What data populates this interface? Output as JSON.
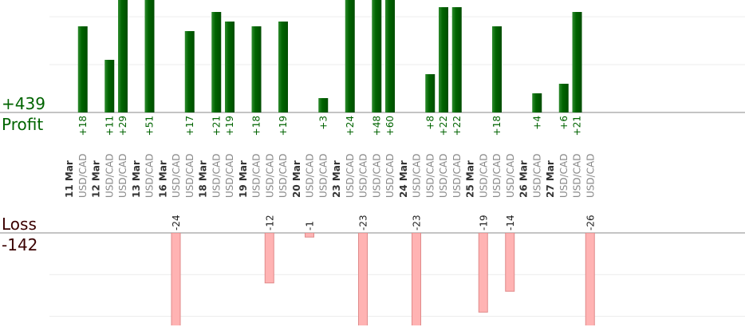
{
  "chart_data": {
    "type": "bar",
    "profit_label": "Profit",
    "profit_total": {
      "value": 439,
      "label": "+439"
    },
    "loss_label": "Loss",
    "loss_total": -142,
    "profit_ylim": [
      0,
      23.5
    ],
    "profit_grid": [
      10,
      20
    ],
    "loss_ylim": [
      -22,
      0
    ],
    "loss_grid": [
      -10,
      -20
    ],
    "profit_color": "#006400",
    "loss_color": "#ffb3b3",
    "groups": [
      {
        "date": "11 Mar",
        "trades": [
          {
            "pair": "USD/CAD",
            "value": 18,
            "value_label": "+18"
          }
        ]
      },
      {
        "date": "12 Mar",
        "trades": [
          {
            "pair": "USD/CAD",
            "value": 11,
            "value_label": "+11"
          },
          {
            "pair": "USD/CAD",
            "value": 29,
            "value_label": "+29"
          }
        ]
      },
      {
        "date": "13 Mar",
        "trades": [
          {
            "pair": "USD/CAD",
            "value": 51,
            "value_label": "+51"
          }
        ]
      },
      {
        "date": "16 Mar",
        "trades": [
          {
            "pair": "USD/CAD",
            "value": -24
          },
          {
            "pair": "USD/CAD",
            "value": 17,
            "value_label": "+17"
          }
        ]
      },
      {
        "date": "18 Mar",
        "trades": [
          {
            "pair": "USD/CAD",
            "value": 21,
            "value_label": "+21"
          },
          {
            "pair": "USD/CAD",
            "value": 19,
            "value_label": "+19"
          }
        ]
      },
      {
        "date": "19 Mar",
        "trades": [
          {
            "pair": "USD/CAD",
            "value": 18,
            "value_label": "+18"
          },
          {
            "pair": "USD/CAD",
            "value": -12
          },
          {
            "pair": "USD/CAD",
            "value": 19,
            "value_label": "+19"
          }
        ]
      },
      {
        "date": "20 Mar",
        "trades": [
          {
            "pair": "USD/CAD",
            "value": -1
          },
          {
            "pair": "USD/CAD",
            "value": 3,
            "value_label": "+3"
          }
        ]
      },
      {
        "date": "23 Mar",
        "trades": [
          {
            "pair": "USD/CAD",
            "value": 24,
            "value_label": "+24"
          },
          {
            "pair": "USD/CAD",
            "value": -23
          },
          {
            "pair": "USD/CAD",
            "value": 48,
            "value_label": "+48"
          },
          {
            "pair": "USD/CAD",
            "value": 60,
            "value_label": "+60"
          }
        ]
      },
      {
        "date": "24 Mar",
        "trades": [
          {
            "pair": "USD/CAD",
            "value": -23
          },
          {
            "pair": "USD/CAD",
            "value": 8,
            "value_label": "+8"
          },
          {
            "pair": "USD/CAD",
            "value": 22,
            "value_label": "+22"
          },
          {
            "pair": "USD/CAD",
            "value": 22,
            "value_label": "+22"
          }
        ]
      },
      {
        "date": "25 Mar",
        "trades": [
          {
            "pair": "USD/CAD",
            "value": -19
          },
          {
            "pair": "USD/CAD",
            "value": 18,
            "value_label": "+18"
          },
          {
            "pair": "USD/CAD",
            "value": -14
          }
        ]
      },
      {
        "date": "26 Mar",
        "trades": [
          {
            "pair": "USD/CAD",
            "value": 4,
            "value_label": "+4"
          }
        ]
      },
      {
        "date": "27 Mar",
        "trades": [
          {
            "pair": "USD/CAD",
            "value": 6,
            "value_label": "+6"
          },
          {
            "pair": "USD/CAD",
            "value": 21,
            "value_label": "+21"
          },
          {
            "pair": "USD/CAD",
            "value": -26
          }
        ]
      }
    ]
  }
}
